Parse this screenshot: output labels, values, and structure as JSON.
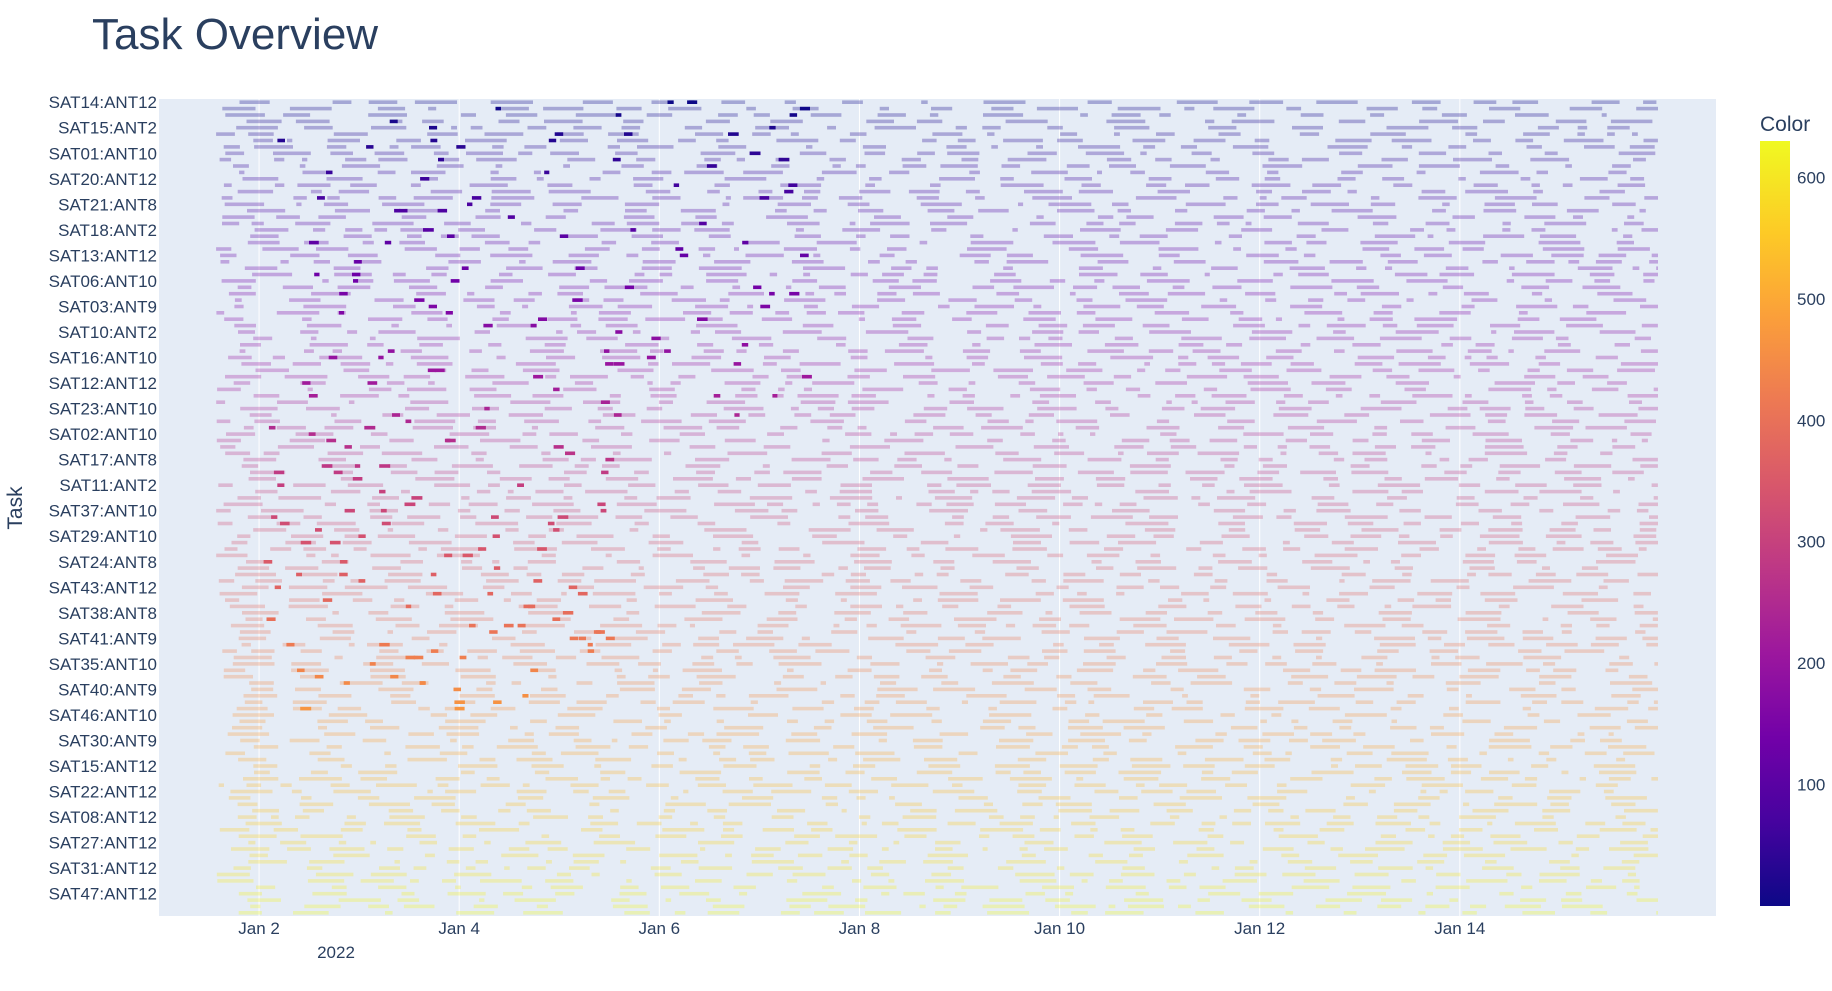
{
  "chart_data": {
    "type": "gantt",
    "title": "Task Overview",
    "ylabel": "Task",
    "xlabel": "",
    "x_ticks": [
      "Jan 2",
      "Jan 4",
      "Jan 6",
      "Jan 8",
      "Jan 10",
      "Jan 12",
      "Jan 14"
    ],
    "x_tick_year": "2022",
    "x_range_days": [
      0.0,
      15.56
    ],
    "y_tick_labels": [
      "SAT14:ANT12",
      "SAT15:ANT2",
      "SAT01:ANT10",
      "SAT20:ANT12",
      "SAT21:ANT8",
      "SAT18:ANT2",
      "SAT13:ANT12",
      "SAT06:ANT10",
      "SAT03:ANT9",
      "SAT10:ANT2",
      "SAT16:ANT10",
      "SAT12:ANT12",
      "SAT23:ANT10",
      "SAT02:ANT10",
      "SAT17:ANT8",
      "SAT11:ANT2",
      "SAT37:ANT10",
      "SAT29:ANT10",
      "SAT24:ANT8",
      "SAT43:ANT12",
      "SAT38:ANT8",
      "SAT41:ANT9",
      "SAT35:ANT10",
      "SAT40:ANT9",
      "SAT46:ANT10",
      "SAT30:ANT9",
      "SAT15:ANT12",
      "SAT22:ANT12",
      "SAT08:ANT12",
      "SAT27:ANT12",
      "SAT31:ANT12",
      "SAT47:ANT12"
    ],
    "row_count": 128,
    "colorbar": {
      "title": "Color",
      "ticks": [
        "600",
        "500",
        "400",
        "300",
        "200",
        "100"
      ],
      "range": [
        0,
        630
      ],
      "colorscale": "Plasma",
      "colors": [
        "#0d0887",
        "#46039f",
        "#7201a8",
        "#9c179e",
        "#bd3786",
        "#d8576b",
        "#ed7953",
        "#fb9f3a",
        "#fdca26",
        "#f0f921"
      ]
    },
    "colors": {
      "plot_bg": "#e5ecf6",
      "grid": "#ffffff",
      "text": "#2a3f5f"
    },
    "grid": true,
    "legend": "colorbar-right"
  }
}
